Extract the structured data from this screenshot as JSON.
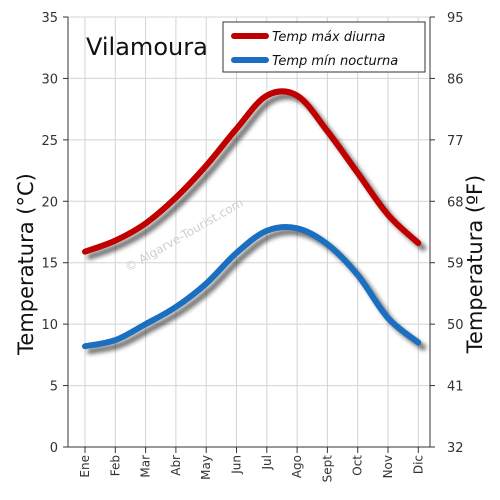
{
  "chart_data": {
    "type": "line",
    "title": "Vilamoura",
    "watermark": "© Algarve-Tourist.com",
    "categories": [
      "Ene",
      "Feb",
      "Mar",
      "Abr",
      "May",
      "Jun",
      "Jul",
      "Ago",
      "Sept",
      "Oct",
      "Nov",
      "Dic"
    ],
    "ylabel": "Temperatura (°C)",
    "y2label": "Temperatura (ºF)",
    "ylim": [
      0,
      35
    ],
    "yticks": [
      0,
      5,
      10,
      15,
      20,
      25,
      30,
      35
    ],
    "y2ticks": [
      32,
      41,
      50,
      59,
      68,
      77,
      86,
      95
    ],
    "grid": true,
    "legend_position": "top-right",
    "series": [
      {
        "name": "Temp máx diurna",
        "color": "#c00000",
        "values": [
          15.9,
          16.8,
          18.2,
          20.3,
          22.9,
          25.9,
          28.6,
          28.6,
          25.7,
          22.3,
          18.9,
          16.6
        ]
      },
      {
        "name": "Temp mín nocturna",
        "color": "#1a6fc0",
        "values": [
          8.2,
          8.7,
          10.0,
          11.4,
          13.3,
          15.8,
          17.6,
          17.8,
          16.5,
          14.0,
          10.5,
          8.5
        ]
      }
    ]
  }
}
